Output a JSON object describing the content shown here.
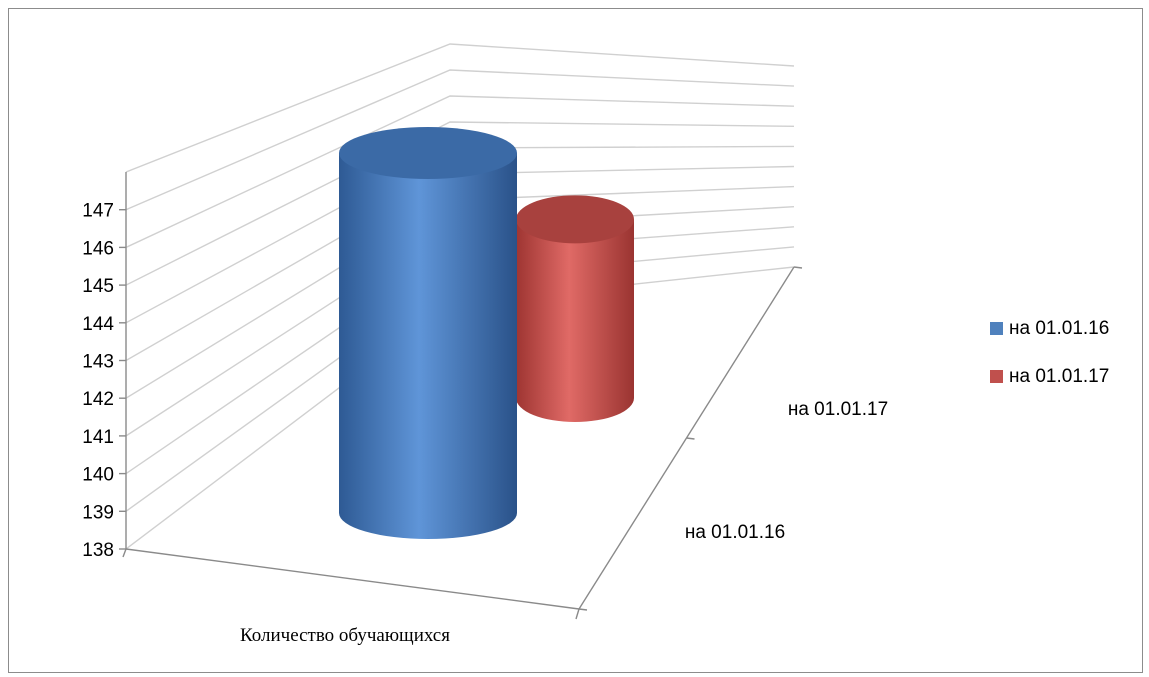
{
  "chart_data": {
    "type": "bar",
    "style": "3d-cylinder",
    "categories": [
      "Количество обучающихся"
    ],
    "series": [
      {
        "name": "на 01.01.16",
        "values": [
          147
        ],
        "color": "#4f81bd"
      },
      {
        "name": "на 01.01.17",
        "values": [
          144
        ],
        "color": "#c0504d"
      }
    ],
    "depth_labels": [
      "на 01.01.16",
      "на 01.01.17"
    ],
    "y_ticks": [
      "138",
      "139",
      "140",
      "141",
      "142",
      "143",
      "144",
      "145",
      "146",
      "147"
    ],
    "ylim": [
      138,
      147
    ],
    "grid": true,
    "legend": "right"
  }
}
